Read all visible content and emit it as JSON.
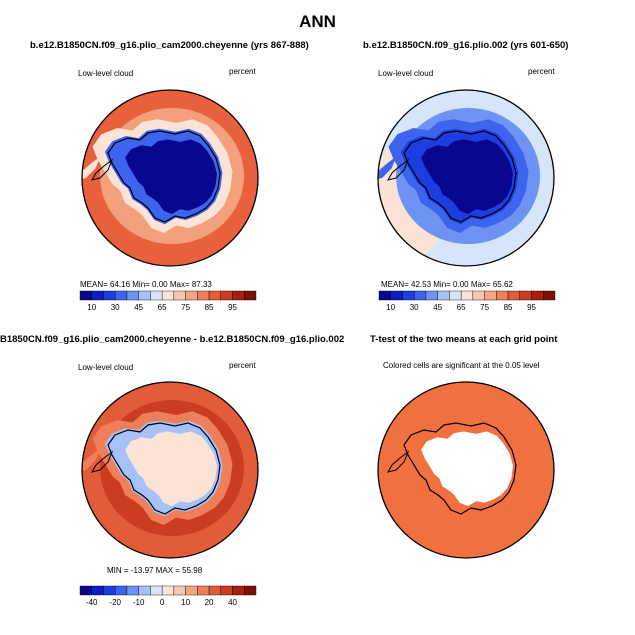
{
  "title": "ANN",
  "panels": [
    {
      "title": "b.e12.B1850CN.f09_g16.plio_cam2000.cheyenne (yrs 867-888)",
      "left_label": "Low-level cloud",
      "right_label": "percent",
      "stats": "MEAN=  64.16   Min=    0.00   Max=   87.33"
    },
    {
      "title": "b.e12.B1850CN.f09_g16.plio.002 (yrs 601-650)",
      "left_label": "Low-level cloud",
      "right_label": "percent",
      "stats": "MEAN=  42.53   Min=    0.00   Max=   65.62"
    },
    {
      "title": "B1850CN.f09_g16.plio_cam2000.cheyenne - b.e12.B1850CN.f09_g16.plio.002",
      "left_label": "Low-level cloud",
      "right_label": "percent",
      "stats": "MIN = -13.97  MAX =  55.98"
    },
    {
      "title": "T-test of the two means at each grid point",
      "subtitle": "Colored cells are significant at the 0.05 level"
    }
  ],
  "colorbars": {
    "abs": {
      "colors": [
        "#08088f",
        "#0b1fbe",
        "#1c3ddf",
        "#3d64ec",
        "#6f93f2",
        "#a6c1f7",
        "#d7e5fa",
        "#fbe4d6",
        "#f8c8ad",
        "#f4a682",
        "#ee7f5a",
        "#e25c39",
        "#cb3d20",
        "#a8200c",
        "#801004"
      ],
      "labels": [
        "10",
        "30",
        "45",
        "65",
        "75",
        "85",
        "95"
      ]
    },
    "diff": {
      "colors": [
        "#08088f",
        "#0b1fbe",
        "#1c3ddf",
        "#3d64ec",
        "#6f93f2",
        "#a6c1f7",
        "#d7e5fa",
        "#fbe4d6",
        "#f8c8ad",
        "#f4a682",
        "#ee7f5a",
        "#e25c39",
        "#cb3d20",
        "#a8200c",
        "#801004"
      ],
      "labels": [
        "-40",
        "-20",
        "-10",
        "0",
        "10",
        "20",
        "40"
      ]
    }
  },
  "chart_data": [
    {
      "type": "heatmap",
      "projection": "south-polar-stereographic",
      "title": "b.e12.B1850CN.f09_g16.plio_cam2000.cheyenne (yrs 867-888)",
      "variable": "Low-level cloud",
      "units": "percent",
      "mean": 64.16,
      "min": 0.0,
      "max": 87.33,
      "levels": [
        10,
        30,
        45,
        65,
        75,
        85,
        95
      ],
      "colors": {
        "ocean": "#e8603c",
        "ocean_inner": "#f3a07d",
        "coast_band": "#fbe4d6",
        "antarctica": "#08088f",
        "antarctica_edge": "#3d64ec"
      }
    },
    {
      "type": "heatmap",
      "projection": "south-polar-stereographic",
      "title": "b.e12.B1850CN.f09_g16.plio.002 (yrs 601-650)",
      "variable": "Low-level cloud",
      "units": "percent",
      "mean": 42.53,
      "min": 0.0,
      "max": 65.62,
      "levels": [
        10,
        30,
        45,
        65,
        75,
        85,
        95
      ],
      "colors": {
        "ocean": "#d7e5fa",
        "ocean_inner": "#6f93f2",
        "coast_band": "#3d64ec",
        "antarctica": "#08088f",
        "antarctica_edge": "#1c3ddf",
        "outer_patch": "#fbe4d6"
      }
    },
    {
      "type": "heatmap",
      "projection": "south-polar-stereographic",
      "title": "B1850CN.f09_g16.plio_cam2000.cheyenne - b.e12.B1850CN.f09_g16.plio.002",
      "variable": "Low-level cloud",
      "units": "percent",
      "min": -13.97,
      "max": 55.98,
      "levels": [
        -40,
        -20,
        -10,
        0,
        10,
        20,
        40
      ],
      "colors": {
        "ocean": "#e25c39",
        "ocean_inner": "#cb3d20",
        "coast_band": "#ee7f5a",
        "antarctica": "#fbe4d6",
        "antarctica_edge": "#a6c1f7"
      }
    },
    {
      "type": "heatmap",
      "projection": "south-polar-stereographic",
      "title": "T-test of the two means at each grid point",
      "note": "Colored cells are significant at the 0.05 level",
      "colors": {
        "ocean": "#f0713f",
        "antarctica": "#ffffff"
      }
    }
  ]
}
